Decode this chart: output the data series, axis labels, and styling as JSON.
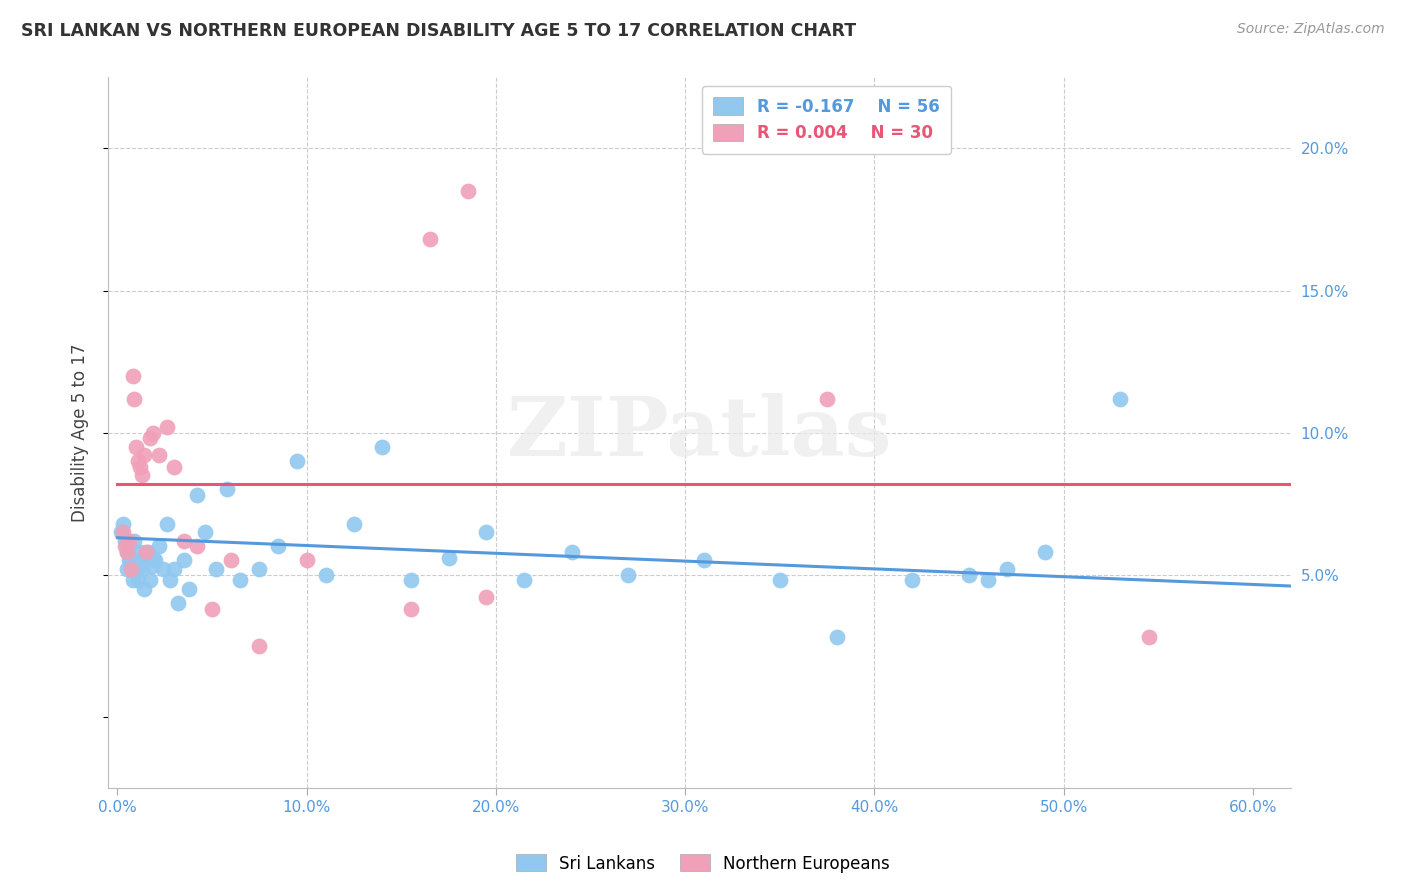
{
  "title": "SRI LANKAN VS NORTHERN EUROPEAN DISABILITY AGE 5 TO 17 CORRELATION CHART",
  "source": "Source: ZipAtlas.com",
  "ylabel": "Disability Age 5 to 17",
  "xlim": [
    -0.005,
    0.62
  ],
  "ylim": [
    -0.025,
    0.225
  ],
  "xticks": [
    0.0,
    0.1,
    0.2,
    0.3,
    0.4,
    0.5,
    0.6
  ],
  "yticks": [
    0.05,
    0.1,
    0.15,
    0.2
  ],
  "ytick_labels": [
    "5.0%",
    "10.0%",
    "15.0%",
    "20.0%"
  ],
  "xtick_labels": [
    "0.0%",
    "10.0%",
    "20.0%",
    "30.0%",
    "40.0%",
    "50.0%",
    "60.0%"
  ],
  "legend_r1": "R = -0.167",
  "legend_n1": "N = 56",
  "legend_r2": "R = 0.004",
  "legend_n2": "N = 30",
  "color_blue": "#90C8F0",
  "color_pink": "#F0A0B8",
  "watermark": "ZIPatlas",
  "sri_lankans_x": [
    0.002,
    0.003,
    0.004,
    0.005,
    0.005,
    0.006,
    0.006,
    0.007,
    0.008,
    0.009,
    0.01,
    0.011,
    0.012,
    0.012,
    0.013,
    0.014,
    0.015,
    0.016,
    0.017,
    0.018,
    0.019,
    0.02,
    0.022,
    0.024,
    0.026,
    0.028,
    0.03,
    0.032,
    0.035,
    0.038,
    0.042,
    0.046,
    0.052,
    0.058,
    0.065,
    0.075,
    0.085,
    0.095,
    0.11,
    0.125,
    0.14,
    0.155,
    0.175,
    0.195,
    0.215,
    0.24,
    0.27,
    0.31,
    0.35,
    0.38,
    0.42,
    0.45,
    0.46,
    0.47,
    0.49,
    0.53
  ],
  "sri_lankans_y": [
    0.065,
    0.068,
    0.062,
    0.058,
    0.052,
    0.06,
    0.055,
    0.055,
    0.048,
    0.062,
    0.055,
    0.048,
    0.053,
    0.058,
    0.052,
    0.045,
    0.055,
    0.058,
    0.048,
    0.053,
    0.056,
    0.055,
    0.06,
    0.052,
    0.068,
    0.048,
    0.052,
    0.04,
    0.055,
    0.045,
    0.078,
    0.065,
    0.052,
    0.08,
    0.048,
    0.052,
    0.06,
    0.09,
    0.05,
    0.068,
    0.095,
    0.048,
    0.056,
    0.065,
    0.048,
    0.058,
    0.05,
    0.055,
    0.048,
    0.028,
    0.048,
    0.05,
    0.048,
    0.052,
    0.058,
    0.112
  ],
  "northern_europeans_x": [
    0.003,
    0.004,
    0.005,
    0.006,
    0.007,
    0.008,
    0.009,
    0.01,
    0.011,
    0.012,
    0.013,
    0.014,
    0.015,
    0.017,
    0.019,
    0.022,
    0.026,
    0.03,
    0.035,
    0.042,
    0.05,
    0.06,
    0.075,
    0.1,
    0.155,
    0.165,
    0.185,
    0.195,
    0.375,
    0.545
  ],
  "northern_europeans_y": [
    0.065,
    0.06,
    0.058,
    0.062,
    0.052,
    0.12,
    0.112,
    0.095,
    0.09,
    0.088,
    0.085,
    0.092,
    0.058,
    0.098,
    0.1,
    0.092,
    0.102,
    0.088,
    0.062,
    0.06,
    0.038,
    0.055,
    0.025,
    0.055,
    0.038,
    0.168,
    0.185,
    0.042,
    0.112,
    0.028
  ],
  "blue_trend_x0": 0.0,
  "blue_trend_x1": 0.62,
  "blue_trend_y0": 0.063,
  "blue_trend_y1": 0.046,
  "pink_trend_y": 0.082,
  "pink_trend_x0": 0.0,
  "pink_trend_x1": 0.62
}
